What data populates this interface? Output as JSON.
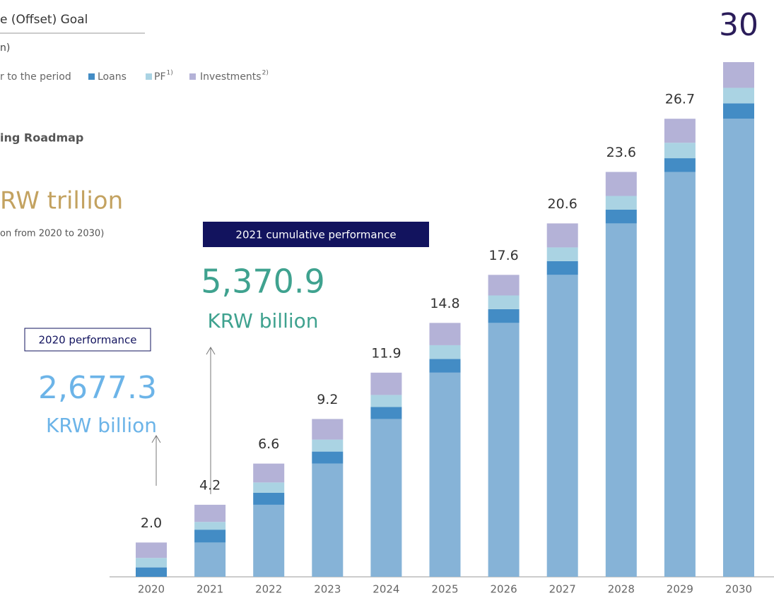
{
  "header": {
    "title": "e (Offset) Goal",
    "unit": "n)",
    "roadmap": "ing Roadmap",
    "goal": "RW trillion",
    "goal_note": "on from 2020 to 2030)"
  },
  "callouts": [
    {
      "tag": "2021 cumulative performance",
      "value": "5,370.9",
      "unit": "KRW billion"
    },
    {
      "tag": "2020 performance",
      "value": "2,677.3",
      "unit": "KRW billion"
    }
  ],
  "chart_data": {
    "type": "stacked-bar",
    "categories": [
      "2020",
      "2021",
      "2022",
      "2023",
      "2024",
      "2025",
      "2026",
      "2027",
      "2028",
      "2029",
      "2030"
    ],
    "series": [
      {
        "name": "r to the period",
        "color": "#86b3d7",
        "values": [
          0,
          2.0,
          4.2,
          6.6,
          9.2,
          11.9,
          14.8,
          17.6,
          20.6,
          23.6,
          26.7
        ]
      },
      {
        "name": "Loans",
        "color": "#438cc5",
        "values": [
          0.55,
          0.75,
          0.7,
          0.7,
          0.7,
          0.8,
          0.8,
          0.8,
          0.8,
          0.8,
          0.9
        ]
      },
      {
        "name": "PF",
        "color": "#aad3e3",
        "values": [
          0.55,
          0.45,
          0.6,
          0.7,
          0.7,
          0.8,
          0.8,
          0.8,
          0.8,
          0.9,
          0.9
        ]
      },
      {
        "name": "Investments",
        "color": "#b4b2d7",
        "values": [
          0.9,
          1.0,
          1.1,
          1.2,
          1.3,
          1.3,
          1.2,
          1.4,
          1.4,
          1.4,
          1.5
        ]
      }
    ],
    "series_footnotes": [
      null,
      null,
      "1)",
      "2)"
    ],
    "totals": [
      2.0,
      4.2,
      6.6,
      9.2,
      11.9,
      14.8,
      17.6,
      20.6,
      23.6,
      26.7,
      30
    ],
    "total_labels": [
      "2.0",
      "4.2",
      "6.6",
      "9.2",
      "11.9",
      "14.8",
      "17.6",
      "20.6",
      "23.6",
      "26.7",
      "30"
    ],
    "ylim": [
      0,
      30
    ]
  }
}
